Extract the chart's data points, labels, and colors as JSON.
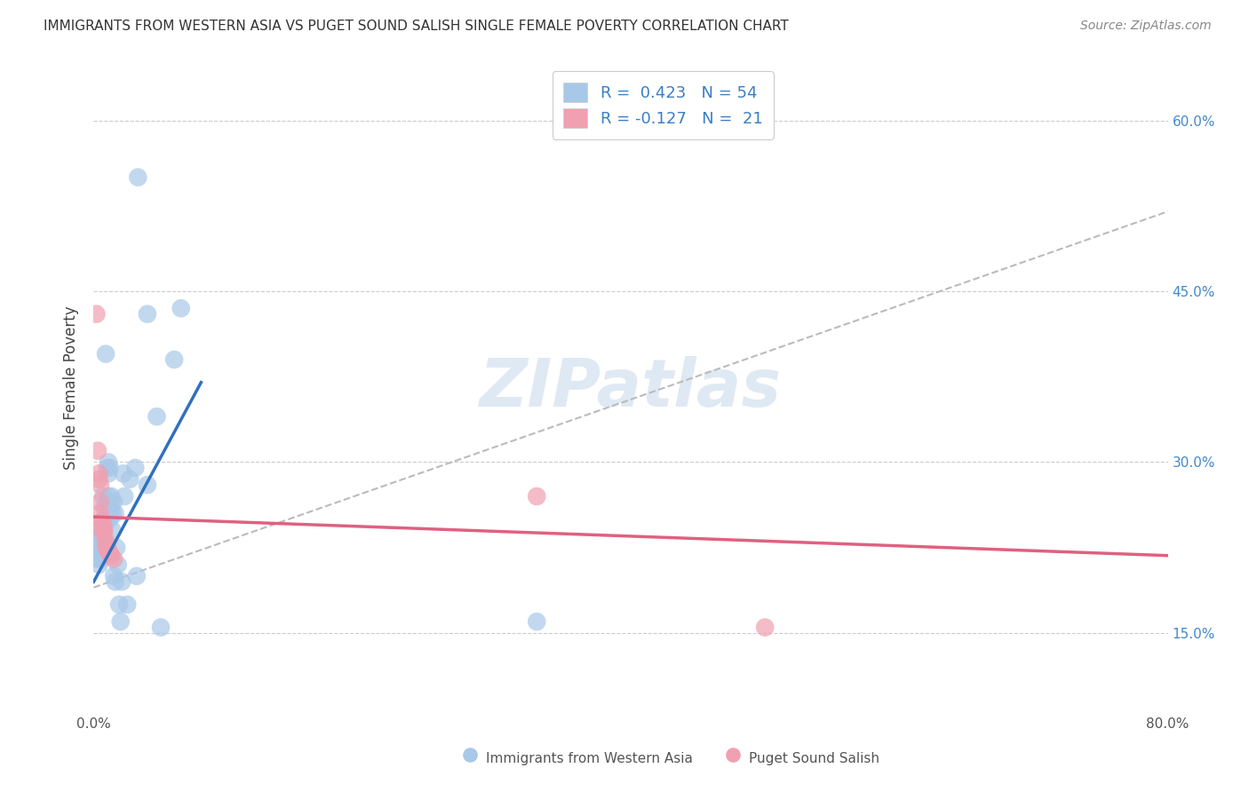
{
  "title": "IMMIGRANTS FROM WESTERN ASIA VS PUGET SOUND SALISH SINGLE FEMALE POVERTY CORRELATION CHART",
  "source": "Source: ZipAtlas.com",
  "ylabel": "Single Female Poverty",
  "xlim": [
    0.0,
    0.8
  ],
  "ylim": [
    0.08,
    0.65
  ],
  "xticks": [
    0.0,
    0.1,
    0.2,
    0.3,
    0.4,
    0.5,
    0.6,
    0.7,
    0.8
  ],
  "xticklabels": [
    "0.0%",
    "",
    "",
    "",
    "",
    "",
    "",
    "",
    "80.0%"
  ],
  "ytick_positions": [
    0.15,
    0.3,
    0.45,
    0.6
  ],
  "ytick_labels": [
    "15.0%",
    "30.0%",
    "45.0%",
    "60.0%"
  ],
  "legend_R1": "R =  0.423",
  "legend_N1": "N = 54",
  "legend_R2": "R = -0.127",
  "legend_N2": "N =  21",
  "color_blue": "#A8C8E8",
  "color_pink": "#F0A0B0",
  "line_blue": "#3070C0",
  "line_pink": "#E06080",
  "line_dashed": "#BBBBBB",
  "watermark": "ZIPatlas",
  "blue_scatter": [
    [
      0.002,
      0.233
    ],
    [
      0.003,
      0.22
    ],
    [
      0.003,
      0.215
    ],
    [
      0.004,
      0.225
    ],
    [
      0.004,
      0.21
    ],
    [
      0.005,
      0.235
    ],
    [
      0.005,
      0.22
    ],
    [
      0.005,
      0.215
    ],
    [
      0.006,
      0.245
    ],
    [
      0.006,
      0.235
    ],
    [
      0.006,
      0.225
    ],
    [
      0.007,
      0.24
    ],
    [
      0.007,
      0.23
    ],
    [
      0.007,
      0.27
    ],
    [
      0.008,
      0.26
    ],
    [
      0.008,
      0.25
    ],
    [
      0.008,
      0.245
    ],
    [
      0.008,
      0.235
    ],
    [
      0.009,
      0.395
    ],
    [
      0.01,
      0.295
    ],
    [
      0.01,
      0.265
    ],
    [
      0.011,
      0.3
    ],
    [
      0.011,
      0.29
    ],
    [
      0.011,
      0.27
    ],
    [
      0.012,
      0.295
    ],
    [
      0.012,
      0.26
    ],
    [
      0.012,
      0.25
    ],
    [
      0.013,
      0.27
    ],
    [
      0.013,
      0.26
    ],
    [
      0.014,
      0.255
    ],
    [
      0.014,
      0.24
    ],
    [
      0.015,
      0.265
    ],
    [
      0.015,
      0.2
    ],
    [
      0.016,
      0.255
    ],
    [
      0.016,
      0.195
    ],
    [
      0.017,
      0.225
    ],
    [
      0.018,
      0.21
    ],
    [
      0.019,
      0.175
    ],
    [
      0.02,
      0.16
    ],
    [
      0.021,
      0.195
    ],
    [
      0.022,
      0.29
    ],
    [
      0.023,
      0.27
    ],
    [
      0.025,
      0.175
    ],
    [
      0.027,
      0.285
    ],
    [
      0.031,
      0.295
    ],
    [
      0.032,
      0.2
    ],
    [
      0.033,
      0.55
    ],
    [
      0.04,
      0.43
    ],
    [
      0.04,
      0.28
    ],
    [
      0.047,
      0.34
    ],
    [
      0.05,
      0.155
    ],
    [
      0.06,
      0.39
    ],
    [
      0.065,
      0.435
    ],
    [
      0.33,
      0.16
    ]
  ],
  "pink_scatter": [
    [
      0.002,
      0.43
    ],
    [
      0.003,
      0.31
    ],
    [
      0.004,
      0.29
    ],
    [
      0.004,
      0.285
    ],
    [
      0.005,
      0.28
    ],
    [
      0.005,
      0.265
    ],
    [
      0.005,
      0.255
    ],
    [
      0.006,
      0.248
    ],
    [
      0.006,
      0.243
    ],
    [
      0.007,
      0.245
    ],
    [
      0.007,
      0.238
    ],
    [
      0.008,
      0.24
    ],
    [
      0.009,
      0.23
    ],
    [
      0.009,
      0.225
    ],
    [
      0.01,
      0.228
    ],
    [
      0.011,
      0.222
    ],
    [
      0.012,
      0.22
    ],
    [
      0.013,
      0.218
    ],
    [
      0.015,
      0.215
    ],
    [
      0.33,
      0.27
    ],
    [
      0.5,
      0.155
    ]
  ],
  "blue_line_x": [
    0.0,
    0.08
  ],
  "blue_line_y": [
    0.195,
    0.37
  ],
  "pink_line_x": [
    0.0,
    0.8
  ],
  "pink_line_y": [
    0.252,
    0.218
  ],
  "dashed_line_x": [
    0.0,
    0.8
  ],
  "dashed_line_y": [
    0.19,
    0.52
  ]
}
